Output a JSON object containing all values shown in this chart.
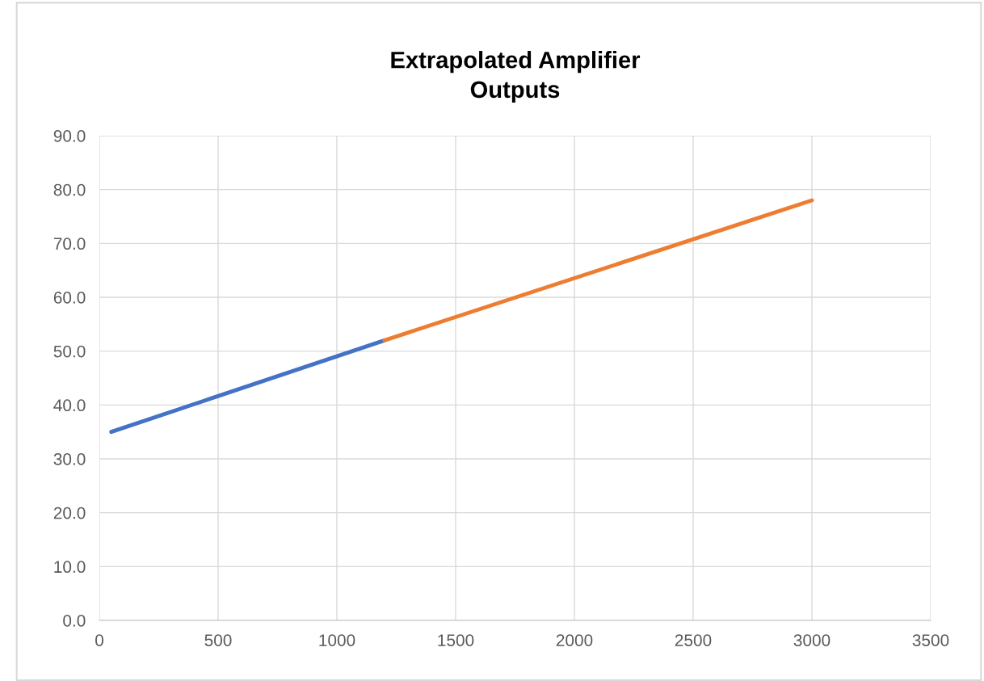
{
  "chart_data": {
    "type": "line",
    "title": "Extrapolated Amplifier\nOutputs",
    "series": [
      {
        "color": "#4472c4",
        "x": [
          50,
          1200
        ],
        "values": [
          35,
          52
        ]
      },
      {
        "color": "#ed7d31",
        "x": [
          1200,
          3000
        ],
        "values": [
          52,
          78
        ]
      }
    ],
    "xlim": [
      0,
      3500
    ],
    "xticks": [
      0,
      500,
      1000,
      1500,
      2000,
      2500,
      3000,
      3500
    ],
    "ylim": [
      0,
      90
    ],
    "yticks": [
      {
        "value": 0,
        "label": "0.0"
      },
      {
        "value": 10,
        "label": "10.0"
      },
      {
        "value": 20,
        "label": "20.0"
      },
      {
        "value": 30,
        "label": "30.0"
      },
      {
        "value": 40,
        "label": "40.0"
      },
      {
        "value": 50,
        "label": "50.0"
      },
      {
        "value": 60,
        "label": "60.0"
      },
      {
        "value": 70,
        "label": "70.0"
      },
      {
        "value": 80,
        "label": "80.0"
      },
      {
        "value": 90,
        "label": "90.0"
      }
    ],
    "grid": true
  }
}
